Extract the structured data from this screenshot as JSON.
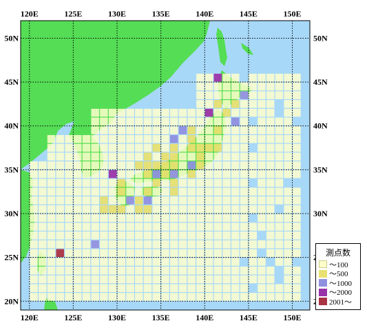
{
  "map": {
    "lon_range": [
      119,
      152
    ],
    "lat_range": [
      19,
      52
    ],
    "lon_ticks": [
      "120E",
      "125E",
      "130E",
      "135E",
      "140E",
      "145E",
      "150E"
    ],
    "lat_ticks": [
      "50N",
      "45N",
      "40N",
      "35N",
      "30N",
      "25N",
      "20N"
    ],
    "colors": {
      "land": "#55dd55",
      "sea": "#a8d8f8"
    }
  },
  "legend": {
    "title": "測点数",
    "items": [
      {
        "label": "～100",
        "color": "#ffffcc"
      },
      {
        "label": "～500",
        "color": "#e8e070"
      },
      {
        "label": "～1000",
        "color": "#9090e0"
      },
      {
        "label": "～2000",
        "color": "#9933aa"
      },
      {
        "label": "2001～",
        "color": "#aa3344"
      }
    ]
  }
}
